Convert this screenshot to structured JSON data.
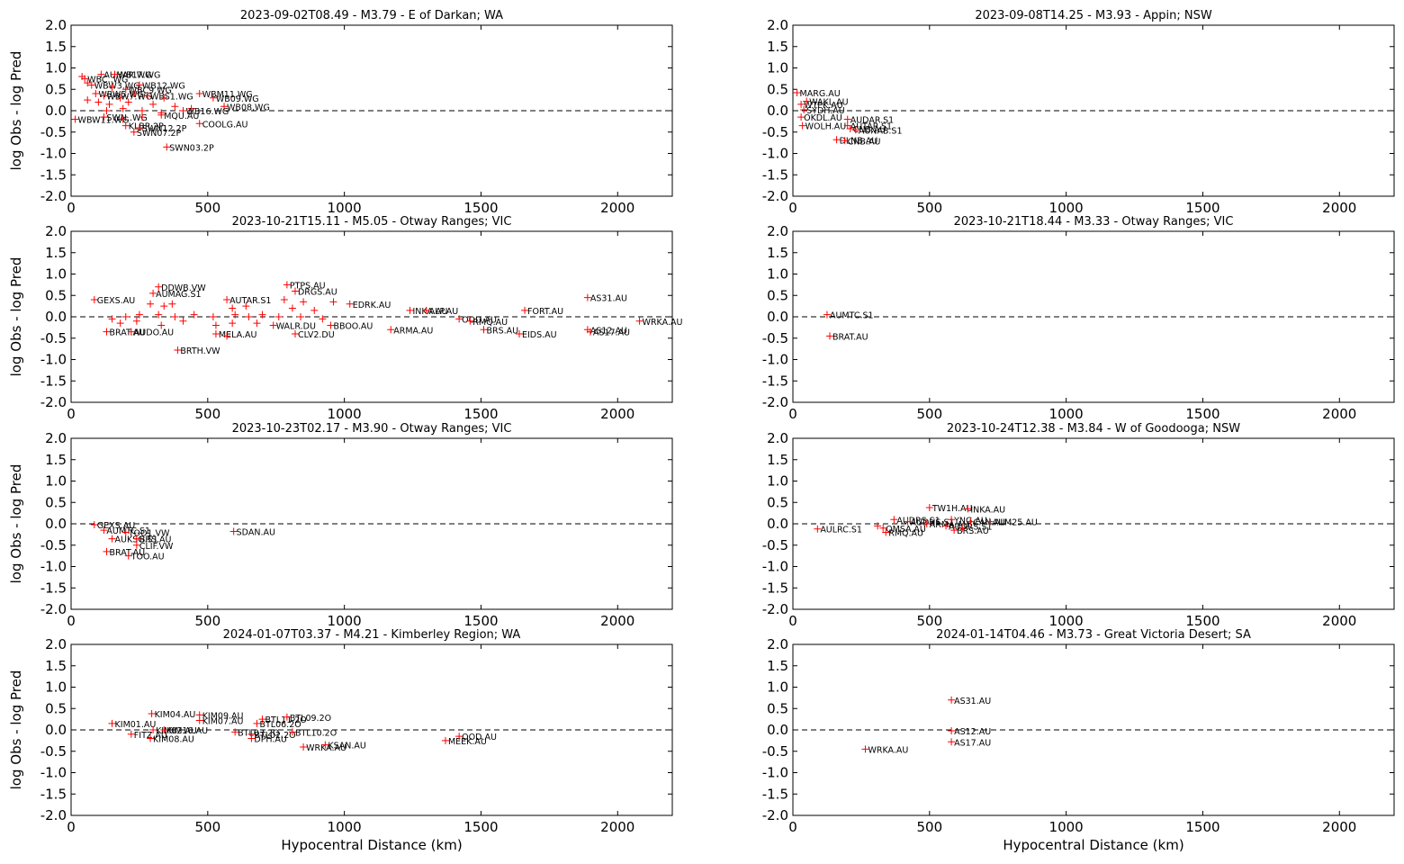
{
  "colors": {
    "marker": "#ff0000",
    "axes": "#000000",
    "zero_line": "#000000"
  },
  "chart_data": [
    {
      "type": "scatter",
      "title": "2023-09-02T08.49 - M3.79 - E of Darkan; WA",
      "xlabel": "",
      "ylabel": "log Obs - log Pred",
      "xlim": [
        0,
        2200
      ],
      "ylim": [
        -2.0,
        2.0
      ],
      "xticks": [
        "0",
        "500",
        "1000",
        "1500",
        "2000"
      ],
      "yticks": [
        "2.0",
        "1.5",
        "1.0",
        "0.5",
        "0.0",
        "-0.5",
        "-1.0",
        "-1.5",
        "-2.0"
      ],
      "reference_line": 0.0,
      "points": [
        {
          "x": 40,
          "y": 0.8,
          "label": ""
        },
        {
          "x": 60,
          "y": 0.65,
          "label": ""
        },
        {
          "x": 110,
          "y": 0.85,
          "label": "AUHAR.WG"
        },
        {
          "x": 160,
          "y": 0.85,
          "label": "WB17.WG"
        },
        {
          "x": 50,
          "y": 0.75,
          "label": "WBC..WG"
        },
        {
          "x": 75,
          "y": 0.6,
          "label": "WBW3.WG"
        },
        {
          "x": 90,
          "y": 0.4,
          "label": "WBW5.WG"
        },
        {
          "x": 150,
          "y": 0.55,
          "label": ""
        },
        {
          "x": 200,
          "y": 0.5,
          "label": "WBC9.WG"
        },
        {
          "x": 250,
          "y": 0.6,
          "label": "WB12.WG"
        },
        {
          "x": 120,
          "y": 0.35,
          "label": "WBW7.WG"
        },
        {
          "x": 180,
          "y": 0.3,
          "label": ""
        },
        {
          "x": 230,
          "y": 0.4,
          "label": ""
        },
        {
          "x": 280,
          "y": 0.35,
          "label": "WBS1.WG"
        },
        {
          "x": 340,
          "y": 0.3,
          "label": ""
        },
        {
          "x": 470,
          "y": 0.4,
          "label": "WBM11.WG"
        },
        {
          "x": 520,
          "y": 0.3,
          "label": "WB09.WG"
        },
        {
          "x": 60,
          "y": 0.25,
          "label": ""
        },
        {
          "x": 100,
          "y": 0.2,
          "label": ""
        },
        {
          "x": 140,
          "y": 0.15,
          "label": ""
        },
        {
          "x": 210,
          "y": 0.2,
          "label": ""
        },
        {
          "x": 300,
          "y": 0.15,
          "label": ""
        },
        {
          "x": 380,
          "y": 0.1,
          "label": ""
        },
        {
          "x": 440,
          "y": 0.05,
          "label": ""
        },
        {
          "x": 560,
          "y": 0.1,
          "label": "WB08.WG"
        },
        {
          "x": 130,
          "y": 0.0,
          "label": ""
        },
        {
          "x": 190,
          "y": 0.05,
          "label": ""
        },
        {
          "x": 260,
          "y": 0.0,
          "label": ""
        },
        {
          "x": 330,
          "y": -0.05,
          "label": ""
        },
        {
          "x": 410,
          "y": 0.0,
          "label": "WB16.WG"
        },
        {
          "x": 15,
          "y": -0.2,
          "label": "WBW11.WG"
        },
        {
          "x": 120,
          "y": -0.15,
          "label": "SWN..WG"
        },
        {
          "x": 190,
          "y": -0.2,
          "label": ""
        },
        {
          "x": 260,
          "y": -0.15,
          "label": ""
        },
        {
          "x": 330,
          "y": -0.1,
          "label": "MQU.AU"
        },
        {
          "x": 470,
          "y": -0.3,
          "label": "COOLG.AU"
        },
        {
          "x": 200,
          "y": -0.35,
          "label": "KLBR.2P"
        },
        {
          "x": 250,
          "y": -0.4,
          "label": "SWN12.2P"
        },
        {
          "x": 230,
          "y": -0.5,
          "label": "SWN07.2P"
        },
        {
          "x": 350,
          "y": -0.85,
          "label": "SWN03.2P"
        }
      ]
    },
    {
      "type": "scatter",
      "title": "2023-09-08T14.25 - M3.93 - Appin; NSW",
      "xlabel": "",
      "ylabel": "",
      "xlim": [
        0,
        2200
      ],
      "ylim": [
        -2.0,
        2.0
      ],
      "xticks": [
        "0",
        "500",
        "1000",
        "1500",
        "2000"
      ],
      "yticks": [
        "2.0",
        "1.5",
        "1.0",
        "0.5",
        "0.0",
        "-0.5",
        "-1.0",
        "-1.5",
        "-2.0"
      ],
      "reference_line": 0.0,
      "points": [
        {
          "x": 15,
          "y": 0.42,
          "label": "MARG.AU"
        },
        {
          "x": 50,
          "y": 0.22,
          "label": "WAKL.AU"
        },
        {
          "x": 30,
          "y": 0.15,
          "label": "WTPK.AU"
        },
        {
          "x": 40,
          "y": 0.02,
          "label": "SYDH.AU"
        },
        {
          "x": 30,
          "y": -0.15,
          "label": "OKDL.AU"
        },
        {
          "x": 35,
          "y": -0.35,
          "label": "WOLH.AU"
        },
        {
          "x": 200,
          "y": -0.2,
          "label": "AUDAR.S1"
        },
        {
          "x": 200,
          "y": -0.35,
          "label": "AUTAR.S1"
        },
        {
          "x": 210,
          "y": -0.42,
          "label": "CNB.AU"
        },
        {
          "x": 230,
          "y": -0.45,
          "label": "AUNAB.S1"
        },
        {
          "x": 160,
          "y": -0.68,
          "label": "DLNB.AU"
        },
        {
          "x": 190,
          "y": -0.7,
          "label": "CNB.AU"
        }
      ]
    },
    {
      "type": "scatter",
      "title": "2023-10-21T15.11 - M5.05 - Otway Ranges; VIC",
      "xlabel": "",
      "ylabel": "log Obs - log Pred",
      "xlim": [
        0,
        2200
      ],
      "ylim": [
        -2.0,
        2.0
      ],
      "xticks": [
        "0",
        "500",
        "1000",
        "1500",
        "2000"
      ],
      "yticks": [
        "2.0",
        "1.5",
        "1.0",
        "0.5",
        "0.0",
        "-0.5",
        "-1.0",
        "-1.5",
        "-2.0"
      ],
      "reference_line": 0.0,
      "points": [
        {
          "x": 85,
          "y": 0.4,
          "label": "GEXS.AU"
        },
        {
          "x": 320,
          "y": 0.7,
          "label": "DDWB.VW"
        },
        {
          "x": 300,
          "y": 0.55,
          "label": "AUMAG.S1"
        },
        {
          "x": 290,
          "y": 0.3,
          "label": ""
        },
        {
          "x": 340,
          "y": 0.25,
          "label": ""
        },
        {
          "x": 370,
          "y": 0.3,
          "label": ""
        },
        {
          "x": 570,
          "y": 0.4,
          "label": "AUTAR.S1"
        },
        {
          "x": 590,
          "y": 0.2,
          "label": ""
        },
        {
          "x": 640,
          "y": 0.25,
          "label": ""
        },
        {
          "x": 790,
          "y": 0.75,
          "label": "PTPS.AU"
        },
        {
          "x": 820,
          "y": 0.6,
          "label": "DRGS.AU"
        },
        {
          "x": 780,
          "y": 0.4,
          "label": ""
        },
        {
          "x": 850,
          "y": 0.35,
          "label": ""
        },
        {
          "x": 960,
          "y": 0.35,
          "label": ""
        },
        {
          "x": 1020,
          "y": 0.3,
          "label": "EDRK.AU"
        },
        {
          "x": 810,
          "y": 0.2,
          "label": ""
        },
        {
          "x": 890,
          "y": 0.15,
          "label": ""
        },
        {
          "x": 150,
          "y": -0.05,
          "label": ""
        },
        {
          "x": 200,
          "y": 0.0,
          "label": ""
        },
        {
          "x": 250,
          "y": 0.05,
          "label": ""
        },
        {
          "x": 320,
          "y": 0.05,
          "label": ""
        },
        {
          "x": 380,
          "y": 0.0,
          "label": ""
        },
        {
          "x": 450,
          "y": 0.05,
          "label": ""
        },
        {
          "x": 520,
          "y": 0.0,
          "label": ""
        },
        {
          "x": 600,
          "y": 0.05,
          "label": ""
        },
        {
          "x": 650,
          "y": 0.0,
          "label": ""
        },
        {
          "x": 700,
          "y": 0.05,
          "label": ""
        },
        {
          "x": 760,
          "y": 0.0,
          "label": ""
        },
        {
          "x": 840,
          "y": 0.0,
          "label": ""
        },
        {
          "x": 920,
          "y": -0.05,
          "label": ""
        },
        {
          "x": 180,
          "y": -0.15,
          "label": ""
        },
        {
          "x": 240,
          "y": -0.1,
          "label": ""
        },
        {
          "x": 330,
          "y": -0.2,
          "label": ""
        },
        {
          "x": 410,
          "y": -0.1,
          "label": ""
        },
        {
          "x": 530,
          "y": -0.2,
          "label": ""
        },
        {
          "x": 590,
          "y": -0.15,
          "label": ""
        },
        {
          "x": 680,
          "y": -0.15,
          "label": ""
        },
        {
          "x": 740,
          "y": -0.2,
          "label": "WALR.DU"
        },
        {
          "x": 950,
          "y": -0.2,
          "label": "BBOO.AU"
        },
        {
          "x": 130,
          "y": -0.35,
          "label": "BRAT.AU"
        },
        {
          "x": 220,
          "y": -0.35,
          "label": "AUDO.AU"
        },
        {
          "x": 530,
          "y": -0.4,
          "label": "MELA.AU"
        },
        {
          "x": 570,
          "y": -0.45,
          "label": ""
        },
        {
          "x": 820,
          "y": -0.4,
          "label": "CLV2.DU"
        },
        {
          "x": 390,
          "y": -0.78,
          "label": "BRTH.VW"
        },
        {
          "x": 1170,
          "y": -0.3,
          "label": "ARMA.AU"
        },
        {
          "x": 1240,
          "y": 0.15,
          "label": "INKA.AU"
        },
        {
          "x": 1300,
          "y": 0.15,
          "label": "ALP.AU"
        },
        {
          "x": 1420,
          "y": -0.05,
          "label": "OOD.AU"
        },
        {
          "x": 1460,
          "y": -0.1,
          "label": "RMQ.AU"
        },
        {
          "x": 1510,
          "y": -0.3,
          "label": "BRS.AU"
        },
        {
          "x": 1660,
          "y": 0.15,
          "label": "FORT.AU"
        },
        {
          "x": 1640,
          "y": -0.4,
          "label": "EIDS.AU"
        },
        {
          "x": 1890,
          "y": 0.45,
          "label": "AS31.AU"
        },
        {
          "x": 1890,
          "y": -0.3,
          "label": "AS12.AU"
        },
        {
          "x": 1900,
          "y": -0.35,
          "label": "AS17.AU"
        },
        {
          "x": 2080,
          "y": -0.1,
          "label": "WRKA.AU"
        }
      ]
    },
    {
      "type": "scatter",
      "title": "2023-10-21T18.44 - M3.33 - Otway Ranges; VIC",
      "xlabel": "",
      "ylabel": "",
      "xlim": [
        0,
        2200
      ],
      "ylim": [
        -2.0,
        2.0
      ],
      "xticks": [
        "0",
        "500",
        "1000",
        "1500",
        "2000"
      ],
      "yticks": [
        "2.0",
        "1.5",
        "1.0",
        "0.5",
        "0.0",
        "-0.5",
        "-1.0",
        "-1.5",
        "-2.0"
      ],
      "reference_line": 0.0,
      "points": [
        {
          "x": 125,
          "y": 0.05,
          "label": "AUMTC.S1"
        },
        {
          "x": 135,
          "y": -0.45,
          "label": "BRAT.AU"
        }
      ]
    },
    {
      "type": "scatter",
      "title": "2023-10-23T02.17 - M3.90 - Otway Ranges; VIC",
      "xlabel": "",
      "ylabel": "log Obs - log Pred",
      "xlim": [
        0,
        2200
      ],
      "ylim": [
        -2.0,
        2.0
      ],
      "xticks": [
        "0",
        "500",
        "1000",
        "1500",
        "2000"
      ],
      "yticks": [
        "2.0",
        "1.5",
        "1.0",
        "0.5",
        "0.0",
        "-0.5",
        "-1.0",
        "-1.5",
        "-2.0"
      ],
      "reference_line": 0.0,
      "points": [
        {
          "x": 85,
          "y": -0.02,
          "label": "GEXS.AU"
        },
        {
          "x": 120,
          "y": -0.15,
          "label": "AUMTC.S1"
        },
        {
          "x": 200,
          "y": -0.2,
          "label": "TOO1.VW"
        },
        {
          "x": 150,
          "y": -0.35,
          "label": "AUKSG.S1"
        },
        {
          "x": 240,
          "y": -0.35,
          "label": "BRS.AU"
        },
        {
          "x": 240,
          "y": -0.5,
          "label": "CLIF.VW"
        },
        {
          "x": 130,
          "y": -0.65,
          "label": "BRAT.AU"
        },
        {
          "x": 210,
          "y": -0.75,
          "label": "TOO.AU"
        },
        {
          "x": 595,
          "y": -0.18,
          "label": "SDAN.AU"
        }
      ]
    },
    {
      "type": "scatter",
      "title": "2023-10-24T12.38 - M3.84 - W of Goodooga; NSW",
      "xlabel": "",
      "ylabel": "",
      "xlim": [
        0,
        2200
      ],
      "ylim": [
        -2.0,
        2.0
      ],
      "xticks": [
        "0",
        "500",
        "1000",
        "1500",
        "2000"
      ],
      "yticks": [
        "2.0",
        "1.5",
        "1.0",
        "0.5",
        "0.0",
        "-0.5",
        "-1.0",
        "-1.5",
        "-2.0"
      ],
      "reference_line": 0.0,
      "points": [
        {
          "x": 90,
          "y": -0.12,
          "label": "AULRC.S1"
        },
        {
          "x": 310,
          "y": -0.05,
          "label": ""
        },
        {
          "x": 330,
          "y": -0.1,
          "label": "QMSA.AU"
        },
        {
          "x": 340,
          "y": -0.2,
          "label": "RMQ.AU"
        },
        {
          "x": 370,
          "y": 0.1,
          "label": "AUDRS.S1"
        },
        {
          "x": 420,
          "y": 0.05,
          "label": "AUDHS.S1"
        },
        {
          "x": 500,
          "y": 0.38,
          "label": "TW1H.AU"
        },
        {
          "x": 490,
          "y": 0.0,
          "label": "ARMA.AU"
        },
        {
          "x": 560,
          "y": -0.05,
          "label": "AUDRS.S1"
        },
        {
          "x": 640,
          "y": 0.35,
          "label": "INKA.AU"
        },
        {
          "x": 580,
          "y": 0.1,
          "label": "YNG.AU"
        },
        {
          "x": 650,
          "y": 0.05,
          "label": "CAN.AU"
        },
        {
          "x": 720,
          "y": 0.05,
          "label": "AUM25.AU"
        },
        {
          "x": 590,
          "y": -0.15,
          "label": "BRS.AU"
        },
        {
          "x": 620,
          "y": -0.1,
          "label": ""
        }
      ]
    },
    {
      "type": "scatter",
      "title": "2024-01-07T03.37 - M4.21 - Kimberley Region; WA",
      "xlabel": "Hypocentral Distance (km)",
      "ylabel": "log Obs - log Pred",
      "xlim": [
        0,
        2200
      ],
      "ylim": [
        -2.0,
        2.0
      ],
      "xticks": [
        "0",
        "500",
        "1000",
        "1500",
        "2000"
      ],
      "yticks": [
        "2.0",
        "1.5",
        "1.0",
        "0.5",
        "0.0",
        "-0.5",
        "-1.0",
        "-1.5",
        "-2.0"
      ],
      "reference_line": 0.0,
      "points": [
        {
          "x": 150,
          "y": 0.15,
          "label": "KIM01.AU"
        },
        {
          "x": 295,
          "y": 0.38,
          "label": "KIM04.AU"
        },
        {
          "x": 470,
          "y": 0.35,
          "label": "KIM09.AU"
        },
        {
          "x": 470,
          "y": 0.22,
          "label": "KIM07.AU"
        },
        {
          "x": 220,
          "y": -0.1,
          "label": "FITZ.AU"
        },
        {
          "x": 300,
          "y": 0.0,
          "label": "KIM02.AU"
        },
        {
          "x": 340,
          "y": 0.0,
          "label": "KIM10.AU"
        },
        {
          "x": 290,
          "y": -0.2,
          "label": "KIM08.AU"
        },
        {
          "x": 700,
          "y": 0.25,
          "label": "BTL11.2O"
        },
        {
          "x": 790,
          "y": 0.3,
          "label": "BTL09.2O"
        },
        {
          "x": 680,
          "y": 0.15,
          "label": "BTL06.2O"
        },
        {
          "x": 600,
          "y": -0.05,
          "label": "BTL03.2O"
        },
        {
          "x": 660,
          "y": -0.1,
          "label": "BTL02.2O"
        },
        {
          "x": 810,
          "y": -0.05,
          "label": "BTL10.2O"
        },
        {
          "x": 660,
          "y": -0.2,
          "label": "DPH.AU"
        },
        {
          "x": 850,
          "y": -0.4,
          "label": "WRKA.AU"
        },
        {
          "x": 930,
          "y": -0.35,
          "label": "KSAN.AU"
        },
        {
          "x": 1370,
          "y": -0.25,
          "label": "MEEK.AU"
        },
        {
          "x": 1420,
          "y": -0.15,
          "label": "OOD.AU"
        }
      ]
    },
    {
      "type": "scatter",
      "title": "2024-01-14T04.46 - M3.73 - Great Victoria Desert; SA",
      "xlabel": "Hypocentral Distance (km)",
      "ylabel": "",
      "xlim": [
        0,
        2200
      ],
      "ylim": [
        -2.0,
        2.0
      ],
      "xticks": [
        "0",
        "500",
        "1000",
        "1500",
        "2000"
      ],
      "yticks": [
        "2.0",
        "1.5",
        "1.0",
        "0.5",
        "0.0",
        "-0.5",
        "-1.0",
        "-1.5",
        "-2.0"
      ],
      "reference_line": 0.0,
      "points": [
        {
          "x": 580,
          "y": 0.7,
          "label": "AS31.AU"
        },
        {
          "x": 580,
          "y": -0.02,
          "label": "AS12.AU"
        },
        {
          "x": 580,
          "y": -0.28,
          "label": "AS17.AU"
        },
        {
          "x": 265,
          "y": -0.45,
          "label": "WRKA.AU"
        }
      ]
    }
  ]
}
